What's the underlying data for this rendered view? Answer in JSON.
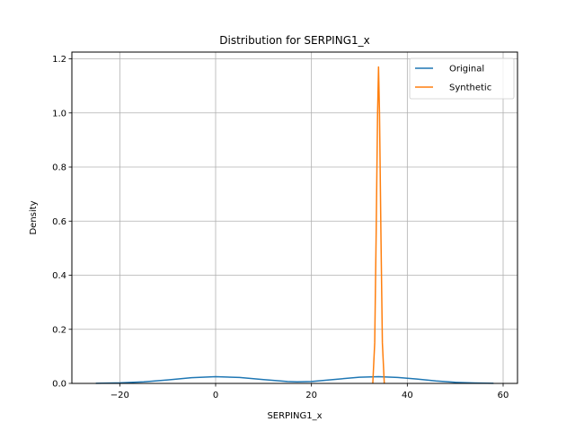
{
  "chart_data": {
    "type": "line",
    "title": "Distribution for SERPING1_x",
    "xlabel": "SERPING1_x",
    "ylabel": "Density",
    "xlim": [
      -30,
      63
    ],
    "ylim": [
      0,
      1.225
    ],
    "xticks": [
      -20,
      0,
      20,
      40,
      60
    ],
    "xtick_labels": [
      "−20",
      "0",
      "20",
      "40",
      "60"
    ],
    "yticks": [
      0.0,
      0.2,
      0.4,
      0.6,
      0.8,
      1.0,
      1.2
    ],
    "ytick_labels": [
      "0.0",
      "0.2",
      "0.4",
      "0.6",
      "0.8",
      "1.0",
      "1.2"
    ],
    "grid": true,
    "legend": "top-right",
    "series": [
      {
        "name": "Original",
        "color": "#1f77b4",
        "x": [
          -25,
          -20,
          -15,
          -10,
          -5,
          0,
          5,
          10,
          15,
          17,
          20,
          25,
          30,
          34,
          38,
          42,
          46,
          50,
          54,
          58
        ],
        "y": [
          0.0005,
          0.002,
          0.006,
          0.013,
          0.021,
          0.025,
          0.022,
          0.014,
          0.007,
          0.006,
          0.007,
          0.015,
          0.023,
          0.025,
          0.022,
          0.016,
          0.009,
          0.004,
          0.0015,
          0.0003
        ]
      },
      {
        "name": "Synthetic",
        "color": "#ff7f0e",
        "x": [
          32.8,
          33.2,
          33.5,
          33.8,
          34.0,
          34.2,
          34.5,
          34.8,
          35.2
        ],
        "y": [
          0.0,
          0.15,
          0.55,
          1.0,
          1.17,
          1.0,
          0.55,
          0.15,
          0.0
        ]
      }
    ]
  }
}
